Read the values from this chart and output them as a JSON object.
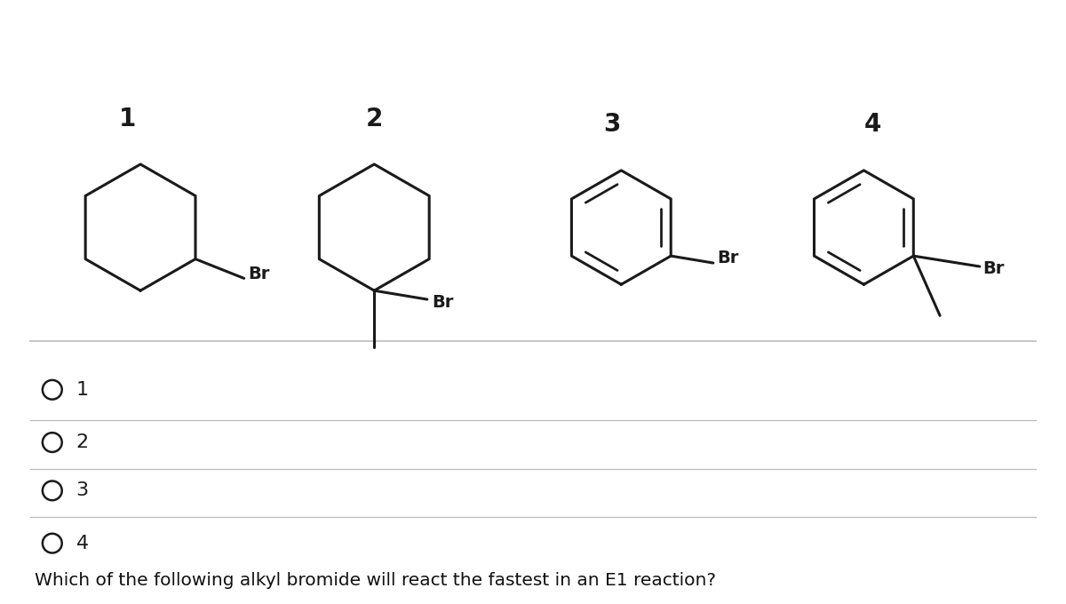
{
  "title": "Which of the following alkyl bromide will react the fastest in an E1 reaction?",
  "title_fontsize": 14.5,
  "background_color": "#ffffff",
  "options": [
    "1",
    "2",
    "3",
    "4"
  ],
  "molecule_labels": [
    "1",
    "2",
    "3",
    "4"
  ],
  "molecule_label_fontsize": 20,
  "option_fontsize": 16,
  "line_color": "#1a1a1a",
  "separator_color": "#bbbbbb",
  "br_label": "Br"
}
